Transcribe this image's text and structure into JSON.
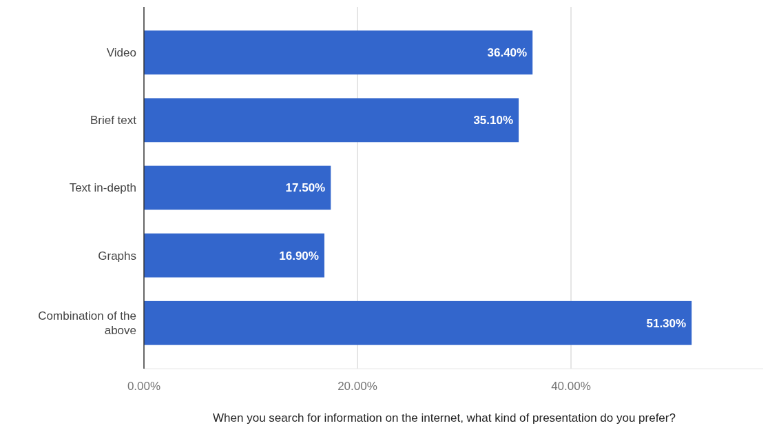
{
  "chart_data": {
    "type": "bar",
    "orientation": "horizontal",
    "xlabel": "When you search for information on the internet, what kind of presentation do you prefer?",
    "categories": [
      "Video",
      "Brief text",
      "Text in-depth",
      "Graphs",
      "Combination of the above"
    ],
    "values": [
      36.4,
      35.1,
      17.5,
      16.9,
      51.3
    ],
    "value_labels": [
      "36.40%",
      "35.10%",
      "17.50%",
      "16.90%",
      "51.30%"
    ],
    "color": "#3366cc",
    "xlim": [
      0,
      58
    ],
    "xticks": [
      {
        "value": 0,
        "label": "0.00%"
      },
      {
        "value": 20,
        "label": "20.00%"
      },
      {
        "value": 40,
        "label": "40.00%"
      }
    ],
    "grid": "x"
  }
}
